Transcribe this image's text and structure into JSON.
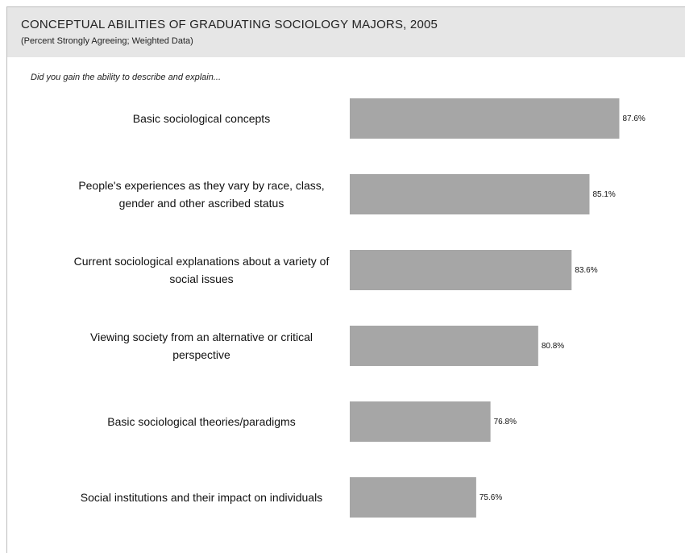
{
  "chart_data": {
    "type": "bar",
    "orientation": "horizontal",
    "title": "CONCEPTUAL ABILITIES OF GRADUATING SOCIOLOGY MAJORS, 2005",
    "subtitle": "(Percent Strongly Agreeing; Weighted Data)",
    "question": "Did you gain the ability to describe and explain...",
    "categories": [
      [
        "Basic sociological concepts"
      ],
      [
        "People's experiences as they vary by race, class,",
        "gender and other ascribed status"
      ],
      [
        "Current sociological explanations about a variety of",
        "social issues"
      ],
      [
        "Viewing society from an alternative or critical",
        "perspective"
      ],
      [
        "Basic sociological theories/paradigms"
      ],
      [
        "Social institutions and their impact on individuals"
      ]
    ],
    "values": [
      87.6,
      85.1,
      83.6,
      80.8,
      76.8,
      75.6
    ],
    "value_labels": [
      "87.6%",
      "85.1%",
      "83.6%",
      "80.8%",
      "76.8%",
      "75.6%"
    ],
    "bar_color": "#a6a6a6",
    "xlim": [
      65,
      100
    ],
    "grid": false,
    "legend": "none"
  }
}
